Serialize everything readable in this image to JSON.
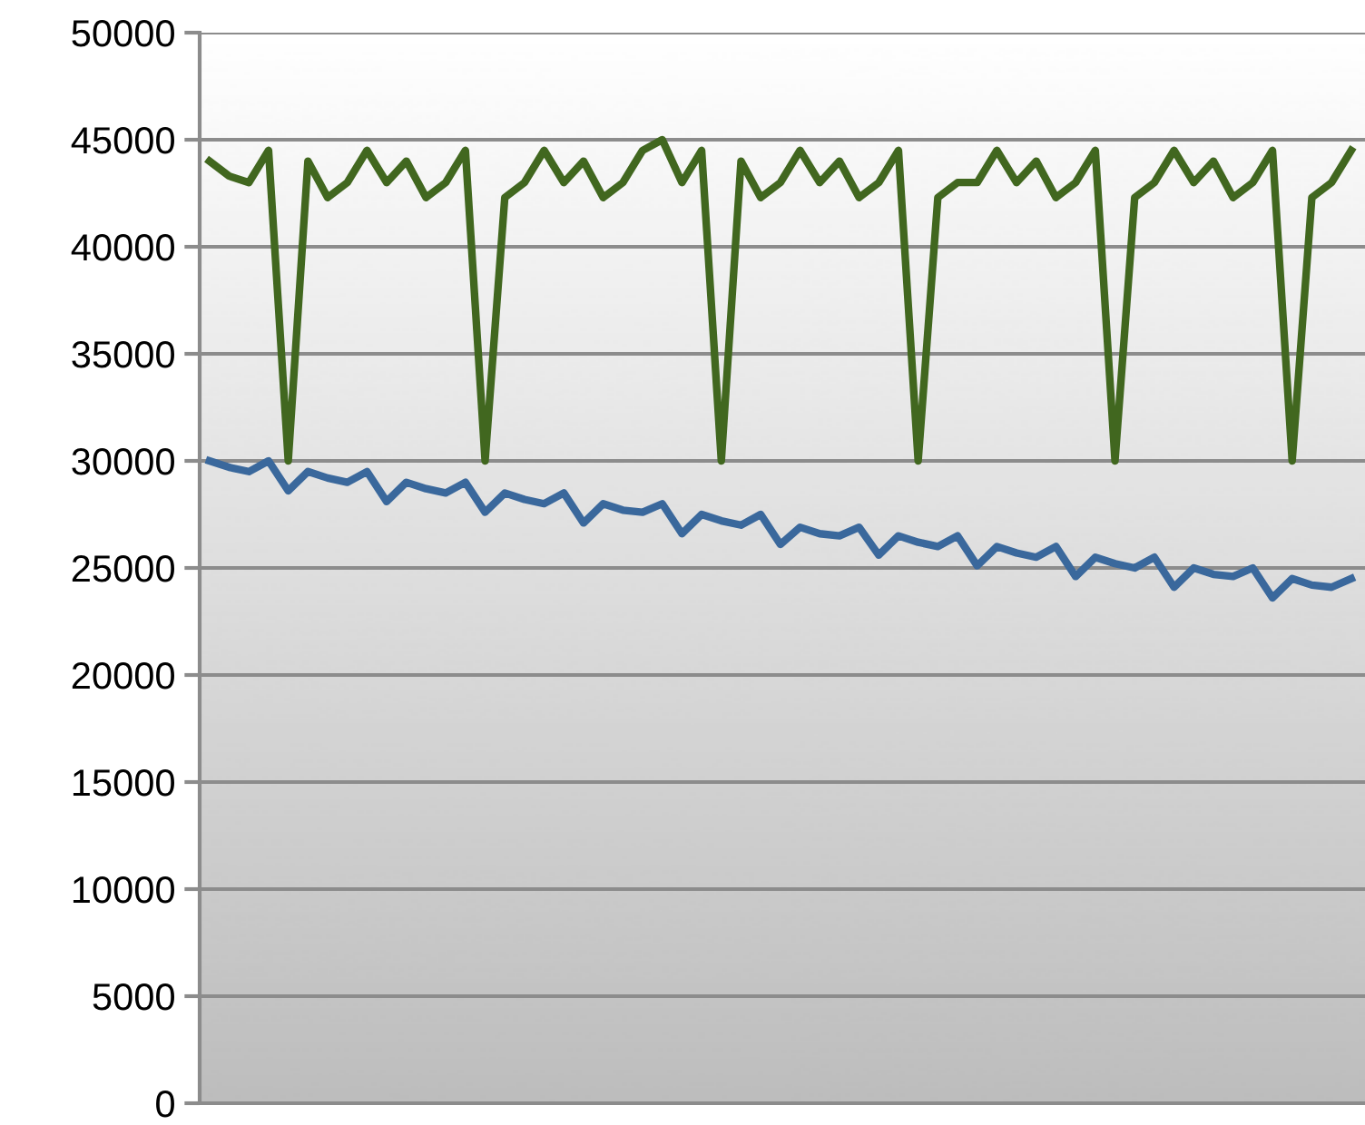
{
  "chart_data": {
    "type": "line",
    "categories": [
      null,
      null,
      null,
      null,
      null,
      null,
      null,
      null,
      null,
      null,
      null,
      null,
      null,
      null,
      null,
      null,
      null,
      null,
      null,
      null,
      null,
      null,
      null,
      null,
      null,
      null,
      null,
      null,
      null,
      null,
      null,
      null,
      null,
      null,
      null,
      null,
      null,
      null,
      null,
      null,
      null,
      null,
      null,
      null,
      null,
      null,
      null,
      null,
      null,
      null,
      null,
      null,
      null,
      null,
      null,
      null,
      null,
      null,
      null
    ],
    "series": [
      {
        "color": "#41671f",
        "values": [
          44000,
          43300,
          43000,
          44500,
          30000,
          44000,
          42300,
          43000,
          44500,
          43000,
          44000,
          42300,
          43000,
          44500,
          30000,
          42300,
          43000,
          44500,
          43000,
          44000,
          42300,
          43000,
          44500,
          45000,
          43000,
          44500,
          30000,
          44000,
          42300,
          43000,
          44500,
          43000,
          44000,
          42300,
          43000,
          44500,
          30000,
          42300,
          43000,
          43000,
          44500,
          43000,
          44000,
          42300,
          43000,
          44500,
          30000,
          42300,
          43000,
          44500,
          43000,
          44000,
          42300,
          43000,
          44500,
          30000,
          42300,
          43000,
          44500
        ]
      },
      {
        "color": "#3a689c",
        "values": [
          30000,
          29700,
          29500,
          30000,
          28600,
          29500,
          29200,
          29000,
          29500,
          28100,
          29000,
          28700,
          28500,
          29000,
          27600,
          28500,
          28200,
          28000,
          28500,
          27100,
          28000,
          27700,
          27600,
          28000,
          26600,
          27500,
          27200,
          27000,
          27500,
          26100,
          26900,
          26600,
          26500,
          26900,
          25600,
          26500,
          26200,
          26000,
          26500,
          25100,
          26000,
          25700,
          25500,
          26000,
          24600,
          25500,
          25200,
          25000,
          25500,
          24100,
          25000,
          24700,
          24600,
          25000,
          23600,
          24500,
          24200,
          24100,
          24500
        ]
      }
    ],
    "ylim": [
      0,
      50000
    ],
    "yticks": [
      0,
      5000,
      10000,
      15000,
      20000,
      25000,
      30000,
      35000,
      40000,
      45000,
      50000
    ],
    "grid": "y",
    "tick_labels": "y",
    "marker": "none",
    "line_style": "solid"
  }
}
